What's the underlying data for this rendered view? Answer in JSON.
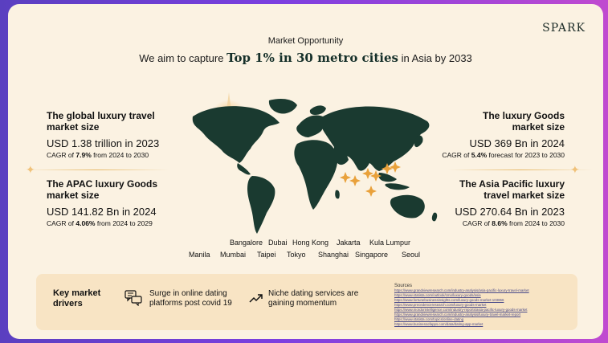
{
  "brand": "SPARK",
  "header": {
    "kicker": "Market Opportunity",
    "pre": "We aim to capture ",
    "emphasis": "Top 1% in 30 metro cities",
    "post": " in Asia by 2033"
  },
  "stats": {
    "global_travel": {
      "title": "The global luxury travel market size",
      "value": "USD 1.38 trillion in 2023",
      "cagr_pre": "CAGR of ",
      "cagr_pct": "7.9%",
      "cagr_post": " from 2024 to 2030"
    },
    "apac_goods": {
      "title": "The APAC luxury Goods market size",
      "value": "USD 141.82 Bn in 2024",
      "cagr_pre": "CAGR of ",
      "cagr_pct": "4.06%",
      "cagr_post": " from 2024 to 2029"
    },
    "luxury_goods": {
      "title": "The luxury Goods market size",
      "value": "USD 369 Bn in 2024",
      "cagr_pre": "CAGR of ",
      "cagr_pct": "5.4%",
      "cagr_post": " forecast for 2023 to 2030"
    },
    "asia_travel": {
      "title": "The Asia Pacific luxury travel market size",
      "value": "USD 270.64 Bn in 2023",
      "cagr_pre": "CAGR of ",
      "cagr_pct": "8.6%",
      "cagr_post": " from 2024 to 2030"
    }
  },
  "cities_row1": [
    "Bangalore",
    "Dubai",
    "Hong Kong",
    "Jakarta",
    "Kula Lumpur"
  ],
  "cities_row2": [
    "Manila",
    "Mumbai",
    "Taipei",
    "Tokyo",
    "Shanghai",
    "Singapore",
    "Seoul"
  ],
  "drivers": {
    "title": "Key market drivers",
    "item1": "Surge in online dating platforms post covid 19",
    "item2": "Niche dating services are gaining momentum"
  },
  "sources": {
    "title": "Sources",
    "links": [
      "https://www.grandviewresearch.com/industry-analysis/asia-pacific-luxury-travel-market",
      "https://www.statista.com/outlook/cmo/luxury-goods/asia",
      "https://www.fortunebusinessinsights.com/luxury-goods-market-103866",
      "https://www.precedenceresearch.com/luxury-goods-market",
      "https://www.mordorintelligence.com/industry-reports/asia-pacific-luxury-goods-market",
      "https://www.grandviewresearch.com/industry-analysis/luxury-travel-market-report",
      "https://www.statista.com/topics/online-dating",
      "https://www.businessofapps.com/data/dating-app-market"
    ]
  },
  "colors": {
    "background": "#fbf2e2",
    "map": "#1a3a30",
    "accent": "#e9a13b",
    "driver_panel": "#f8e4c4"
  }
}
